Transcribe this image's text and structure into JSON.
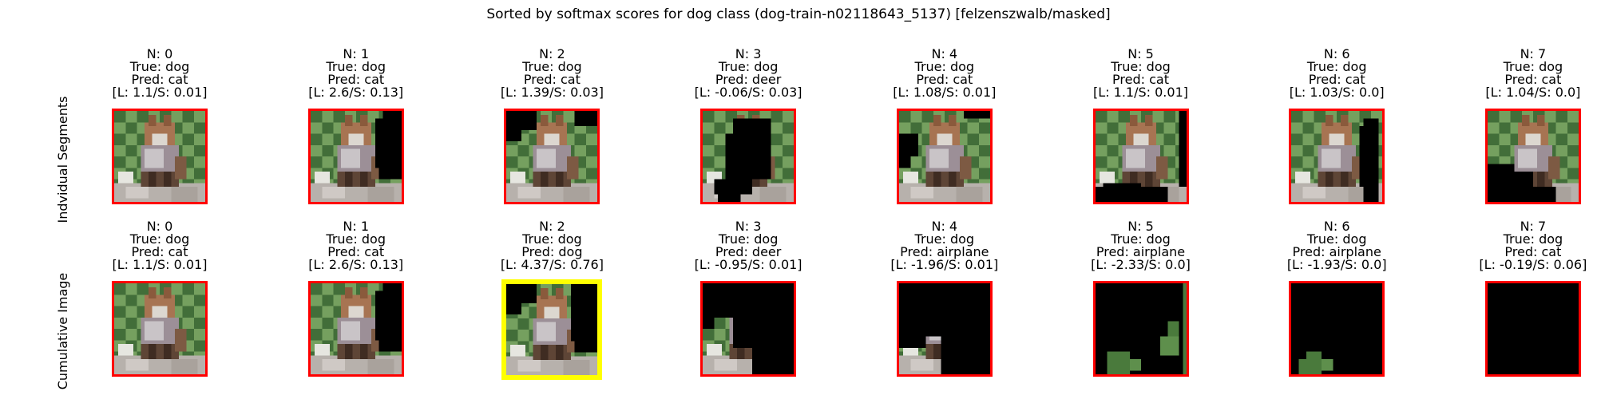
{
  "figure": {
    "title": "Sorted by softmax scores for dog class (dog-train-n02118643_5137) [felzenszwalb/masked]",
    "row_labels": [
      "Indvidual Segments",
      "Cumulative Image"
    ]
  },
  "chart_data": {
    "type": "image-grid",
    "title": "Sorted by softmax scores for dog class (dog-train-n02118643_5137) [felzenszwalb/masked]",
    "rows": [
      {
        "label": "Indvidual Segments",
        "cells": [
          {
            "n": "N: 0",
            "true": "True: dog",
            "pred": "Pred: cat",
            "score": "[L: 1.1/S: 0.01]",
            "border": "#ff0000",
            "mask": "none"
          },
          {
            "n": "N: 1",
            "true": "True: dog",
            "pred": "Pred: cat",
            "score": "[L: 2.6/S: 0.13]",
            "border": "#ff0000",
            "mask": "right-top"
          },
          {
            "n": "N: 2",
            "true": "True: dog",
            "pred": "Pred: cat",
            "score": "[L: 1.39/S: 0.03]",
            "border": "#ff0000",
            "mask": "left-top"
          },
          {
            "n": "N: 3",
            "true": "True: dog",
            "pred": "Pred: deer",
            "score": "[L: -0.06/S: 0.03]",
            "border": "#ff0000",
            "mask": "center"
          },
          {
            "n": "N: 4",
            "true": "True: dog",
            "pred": "Pred: cat",
            "score": "[L: 1.08/S: 0.01]",
            "border": "#ff0000",
            "mask": "left-mid"
          },
          {
            "n": "N: 5",
            "true": "True: dog",
            "pred": "Pred: cat",
            "score": "[L: 1.1/S: 0.01]",
            "border": "#ff0000",
            "mask": "bottom-strip"
          },
          {
            "n": "N: 6",
            "true": "True: dog",
            "pred": "Pred: cat",
            "score": "[L: 1.03/S: 0.0]",
            "border": "#ff0000",
            "mask": "right-strip"
          },
          {
            "n": "N: 7",
            "true": "True: dog",
            "pred": "Pred: cat",
            "score": "[L: 1.04/S: 0.0]",
            "border": "#ff0000",
            "mask": "bottom-left"
          }
        ]
      },
      {
        "label": "Cumulative Image",
        "cells": [
          {
            "n": "N: 0",
            "true": "True: dog",
            "pred": "Pred: cat",
            "score": "[L: 1.1/S: 0.01]",
            "border": "#ff0000",
            "mask": "none"
          },
          {
            "n": "N: 1",
            "true": "True: dog",
            "pred": "Pred: cat",
            "score": "[L: 2.6/S: 0.13]",
            "border": "#ff0000",
            "mask": "right-top"
          },
          {
            "n": "N: 2",
            "true": "True: dog",
            "pred": "Pred: dog",
            "score": "[L: 4.37/S: 0.76]",
            "border": "#ffff00",
            "mask": "cum2"
          },
          {
            "n": "N: 3",
            "true": "True: dog",
            "pred": "Pred: deer",
            "score": "[L: -0.95/S: 0.01]",
            "border": "#ff0000",
            "mask": "cum3"
          },
          {
            "n": "N: 4",
            "true": "True: dog",
            "pred": "Pred: airplane",
            "score": "[L: -1.96/S: 0.01]",
            "border": "#ff0000",
            "mask": "cum4"
          },
          {
            "n": "N: 5",
            "true": "True: dog",
            "pred": "Pred: airplane",
            "score": "[L: -2.33/S: 0.0]",
            "border": "#ff0000",
            "mask": "cum5"
          },
          {
            "n": "N: 6",
            "true": "True: dog",
            "pred": "Pred: airplane",
            "score": "[L: -1.93/S: 0.0]",
            "border": "#ff0000",
            "mask": "cum6"
          },
          {
            "n": "N: 7",
            "true": "True: dog",
            "pred": "Pred: cat",
            "score": "[L: -0.19/S: 0.06]",
            "border": "#ff0000",
            "mask": "all"
          }
        ]
      }
    ]
  }
}
